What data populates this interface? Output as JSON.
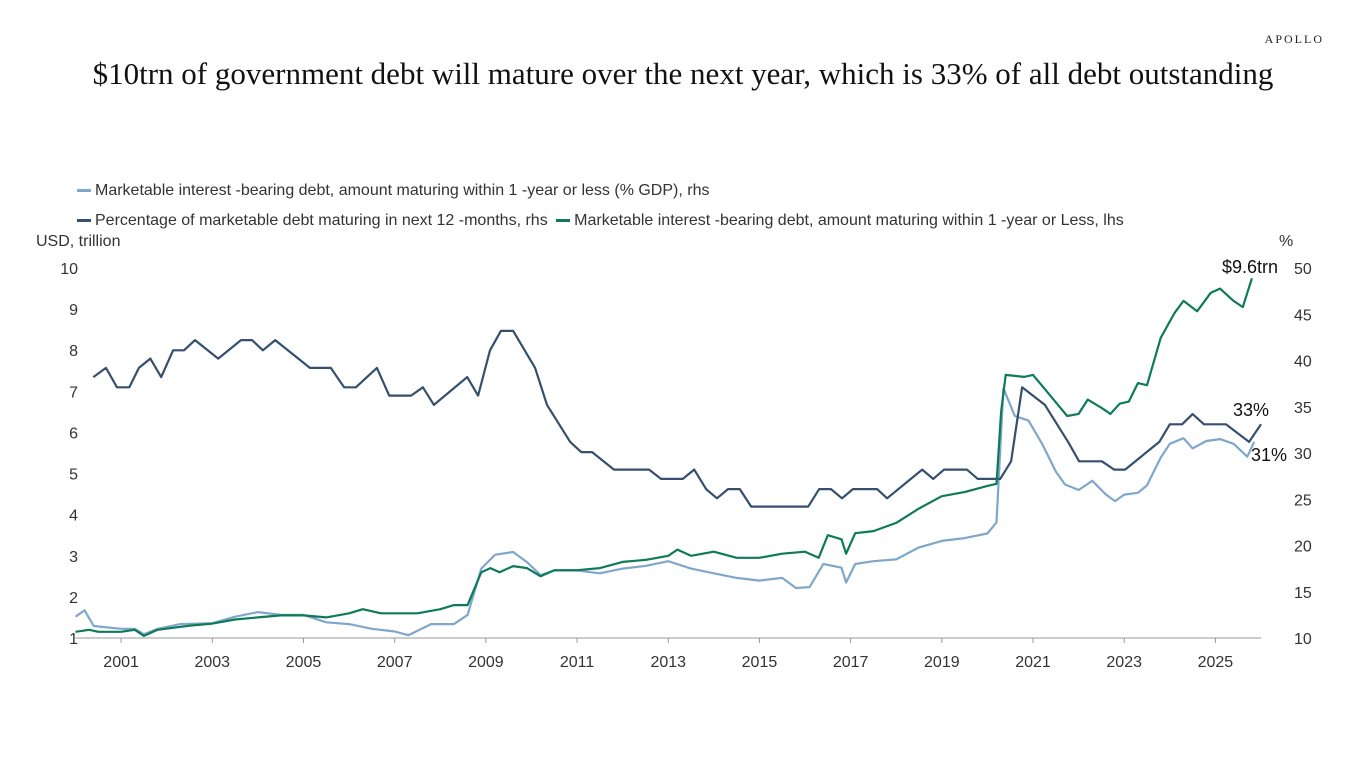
{
  "logo": "APOLLO",
  "title": "$10trn of government debt will mature over the next year, which is 33% of all debt outstanding",
  "chart_data": {
    "type": "line",
    "title": "$10trn of government debt will mature over the next year, which is 33% of all debt outstanding",
    "ylabel_left": "USD, trillion",
    "ylabel_right": "%",
    "xlim": [
      2000,
      2026
    ],
    "ylim_left": [
      1,
      10
    ],
    "ylim_right": [
      10,
      50
    ],
    "x_ticks": [
      "2001",
      "2003",
      "2005",
      "2007",
      "2009",
      "2011",
      "2013",
      "2015",
      "2017",
      "2019",
      "2021",
      "2023",
      "2025"
    ],
    "y_left_ticks": [
      "1",
      "2",
      "3",
      "4",
      "5",
      "6",
      "7",
      "8",
      "9",
      "10"
    ],
    "y_right_ticks": [
      "10",
      "15",
      "20",
      "25",
      "30",
      "35",
      "40",
      "45",
      "50"
    ],
    "grid": false,
    "legend_position": "top",
    "annotations": [
      "$9.6trn",
      "33%",
      "31%"
    ],
    "series": [
      {
        "name": "Marketable interest -bearing debt, amount maturing within 1 -year or less (% GDP), rhs",
        "axis": "right",
        "color": "#7fa7cc",
        "x": [
          2000.0,
          2000.2,
          2000.4,
          2001.0,
          2001.3,
          2001.5,
          2001.8,
          2002.3,
          2003.0,
          2003.5,
          2004.0,
          2004.5,
          2005.0,
          2005.5,
          2006.0,
          2006.5,
          2007.0,
          2007.3,
          2007.8,
          2008.3,
          2008.6,
          2008.9,
          2009.2,
          2009.6,
          2009.9,
          2010.2,
          2010.5,
          2011.0,
          2011.5,
          2012.0,
          2012.5,
          2013.0,
          2013.5,
          2014.0,
          2014.5,
          2015.0,
          2015.5,
          2015.8,
          2016.1,
          2016.4,
          2016.8,
          2016.9,
          2017.1,
          2017.5,
          2018.0,
          2018.5,
          2019.0,
          2019.5,
          2020.0,
          2020.2,
          2020.35,
          2020.6,
          2020.9,
          2021.2,
          2021.5,
          2021.7,
          2022.0,
          2022.3,
          2022.6,
          2022.8,
          2023.0,
          2023.3,
          2023.5,
          2023.8,
          2024.0,
          2024.3,
          2024.5,
          2024.8,
          2025.1,
          2025.4,
          2025.7,
          2025.85
        ],
        "y": [
          12.3,
          13,
          11.3,
          11.0,
          11.0,
          10.4,
          11.0,
          11.5,
          11.6,
          12.3,
          12.8,
          12.5,
          12.5,
          11.7,
          11.5,
          11.0,
          10.7,
          10.3,
          11.5,
          11.5,
          12.5,
          17.5,
          19.0,
          19.3,
          18.2,
          16.8,
          17.3,
          17.3,
          17.0,
          17.5,
          17.8,
          18.3,
          17.5,
          17.0,
          16.5,
          16.2,
          16.5,
          15.4,
          15.5,
          18.0,
          17.6,
          16.0,
          18.0,
          18.3,
          18.5,
          19.8,
          20.5,
          20.8,
          21.3,
          22.5,
          37.0,
          34.0,
          33.5,
          31.0,
          28.0,
          26.6,
          26.0,
          27.0,
          25.5,
          24.8,
          25.5,
          25.7,
          26.5,
          29.5,
          31.0,
          31.6,
          30.5,
          31.3,
          31.5,
          31.0,
          29.6,
          31.2
        ]
      },
      {
        "name": "Percentage of marketable debt maturing in next 12 -months, rhs",
        "axis": "right",
        "color": "#34506e",
        "x": [
          2000.39,
          2000.67,
          2000.91,
          2001.18,
          2001.39,
          2001.64,
          2001.88,
          2002.14,
          2002.38,
          2002.62,
          2003.13,
          2003.63,
          2003.87,
          2004.11,
          2004.38,
          2005.14,
          2005.6,
          2005.89,
          2006.15,
          2006.61,
          2006.88,
          2007.36,
          2007.62,
          2007.86,
          2008.59,
          2008.83,
          2009.09,
          2009.33,
          2009.6,
          2010.08,
          2010.34,
          2010.85,
          2011.09,
          2011.33,
          2011.81,
          2012.58,
          2012.84,
          2013.32,
          2013.57,
          2013.83,
          2014.07,
          2014.31,
          2014.57,
          2014.82,
          2016.07,
          2016.31,
          2016.57,
          2016.81,
          2017.05,
          2017.58,
          2017.8,
          2018.57,
          2018.81,
          2019.05,
          2019.55,
          2019.79,
          2020.28,
          2020.52,
          2020.76,
          2021.26,
          2021.77,
          2022.01,
          2022.51,
          2022.78,
          2023.02,
          2023.77,
          2024.0,
          2024.27,
          2024.5,
          2024.75,
          2025.23,
          2025.74,
          2026.0
        ],
        "y": [
          38.2,
          39.2,
          37.1,
          37.1,
          39.2,
          40.2,
          38.2,
          41.1,
          41.1,
          42.2,
          40.2,
          42.2,
          42.2,
          41.1,
          42.2,
          39.2,
          39.2,
          37.1,
          37.1,
          39.2,
          36.2,
          36.2,
          37.1,
          35.2,
          38.2,
          36.2,
          41.1,
          43.2,
          43.2,
          39.2,
          35.2,
          31.2,
          30.1,
          30.1,
          28.2,
          28.2,
          27.2,
          27.2,
          28.2,
          26.1,
          25.1,
          26.1,
          26.1,
          24.2,
          24.2,
          26.1,
          26.1,
          25.1,
          26.1,
          26.1,
          25.1,
          28.2,
          27.2,
          28.2,
          28.2,
          27.2,
          27.2,
          29.1,
          37.1,
          35.2,
          31.2,
          29.1,
          29.1,
          28.2,
          28.2,
          31.2,
          33.1,
          33.1,
          34.2,
          33.1,
          33.1,
          31.2,
          33.1
        ]
      },
      {
        "name": "Marketable interest -bearing debt, amount maturing within 1 -year or Less, lhs",
        "axis": "left",
        "color": "#0f7a5a",
        "x": [
          2000.0,
          2000.3,
          2000.5,
          2001.0,
          2001.3,
          2001.5,
          2001.8,
          2002.5,
          2003.0,
          2003.5,
          2004.0,
          2004.5,
          2005.0,
          2005.5,
          2006.0,
          2006.3,
          2006.7,
          2007.0,
          2007.5,
          2008.0,
          2008.3,
          2008.6,
          2008.9,
          2009.1,
          2009.3,
          2009.6,
          2009.9,
          2010.2,
          2010.5,
          2011.0,
          2011.5,
          2012.0,
          2012.5,
          2013.0,
          2013.2,
          2013.5,
          2014.0,
          2014.5,
          2015.0,
          2015.5,
          2016.0,
          2016.3,
          2016.5,
          2016.8,
          2016.9,
          2017.1,
          2017.5,
          2018.0,
          2018.5,
          2019.0,
          2019.5,
          2020.0,
          2020.2,
          2020.3,
          2020.4,
          2020.8,
          2021.0,
          2021.3,
          2021.6,
          2021.75,
          2022.0,
          2022.2,
          2022.5,
          2022.7,
          2022.9,
          2023.1,
          2023.3,
          2023.5,
          2023.8,
          2024.1,
          2024.3,
          2024.6,
          2024.9,
          2025.1,
          2025.4,
          2025.6,
          2025.8
        ],
        "y": [
          1.15,
          1.2,
          1.15,
          1.15,
          1.2,
          1.05,
          1.2,
          1.3,
          1.35,
          1.45,
          1.5,
          1.55,
          1.55,
          1.5,
          1.6,
          1.7,
          1.6,
          1.6,
          1.6,
          1.7,
          1.8,
          1.8,
          2.6,
          2.7,
          2.6,
          2.75,
          2.7,
          2.5,
          2.65,
          2.65,
          2.7,
          2.85,
          2.9,
          3.0,
          3.15,
          3.0,
          3.1,
          2.95,
          2.95,
          3.05,
          3.1,
          2.95,
          3.5,
          3.4,
          3.05,
          3.55,
          3.6,
          3.8,
          4.15,
          4.45,
          4.55,
          4.7,
          4.75,
          6.5,
          7.4,
          7.35,
          7.4,
          7.0,
          6.6,
          6.4,
          6.45,
          6.8,
          6.6,
          6.45,
          6.7,
          6.75,
          7.2,
          7.15,
          8.3,
          8.9,
          9.2,
          8.95,
          9.4,
          9.5,
          9.2,
          9.05,
          9.75
        ]
      }
    ]
  }
}
